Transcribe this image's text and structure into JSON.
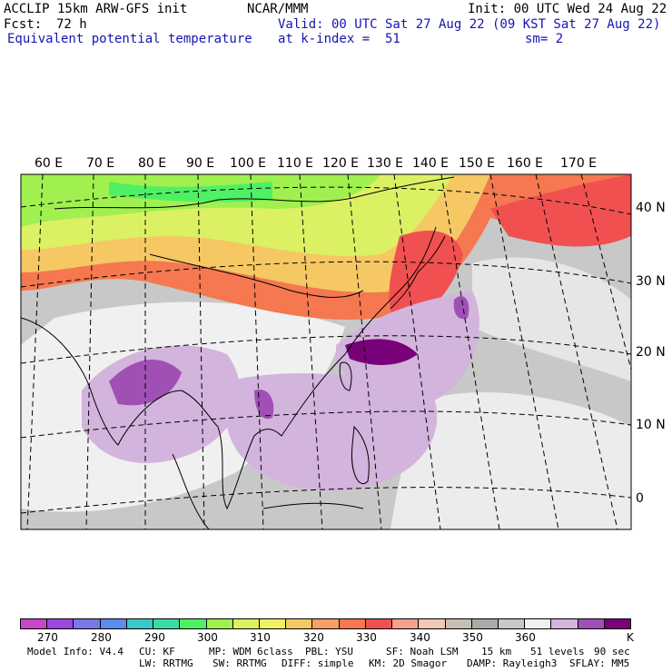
{
  "header": {
    "model": "ACCLIP 15km ARW-GFS init",
    "org": "NCAR/MMM",
    "init": "Init: 00 UTC Wed 24 Aug 22",
    "fcst_label": "Fcst:",
    "fcst_value": "72 h",
    "valid": "Valid: 00 UTC Sat 27 Aug 22 (09 KST Sat 27 Aug 22)",
    "field": "Equivalent potential temperature",
    "level": "at k-index =  51",
    "smooth": "sm= 2"
  },
  "longitude_labels": [
    "60 E",
    "70 E",
    "80 E",
    "90 E",
    "100 E",
    "110 E",
    "120 E",
    "130 E",
    "140 E",
    "150 E",
    "160 E",
    "170 E"
  ],
  "latitude_labels": [
    "40 N",
    "30 N",
    "20 N",
    "10 N",
    "0"
  ],
  "colorbar": {
    "colors": [
      "#c846c8",
      "#9e46e0",
      "#7878e6",
      "#5a8cf0",
      "#3cc8c8",
      "#3cdca0",
      "#50f064",
      "#a0f050",
      "#dcf064",
      "#f0f064",
      "#f5c864",
      "#f5a064",
      "#f57850",
      "#f05050",
      "#f5a08c",
      "#f0c8b4",
      "#c8beb4",
      "#aaaaaa",
      "#c8c8c8",
      "#f0f0f0",
      "#d2b4dc",
      "#a050b4",
      "#780078"
    ],
    "tick_labels": [
      "270",
      "280",
      "290",
      "300",
      "310",
      "320",
      "330",
      "340",
      "350",
      "360"
    ],
    "unit": "K"
  },
  "footer": {
    "line1": [
      "Model Info: V4.4",
      "CU: KF",
      "MP: WDM 6class",
      "PBL: YSU",
      "SF: Noah LSM",
      "15 km",
      "51 levels",
      "90 sec"
    ],
    "line2": [
      "LW: RRTMG",
      "SW: RRTMG",
      "DIFF: simple",
      "KM: 2D Smagor",
      "DAMP: Rayleigh3",
      "SFLAY: MM5"
    ]
  }
}
